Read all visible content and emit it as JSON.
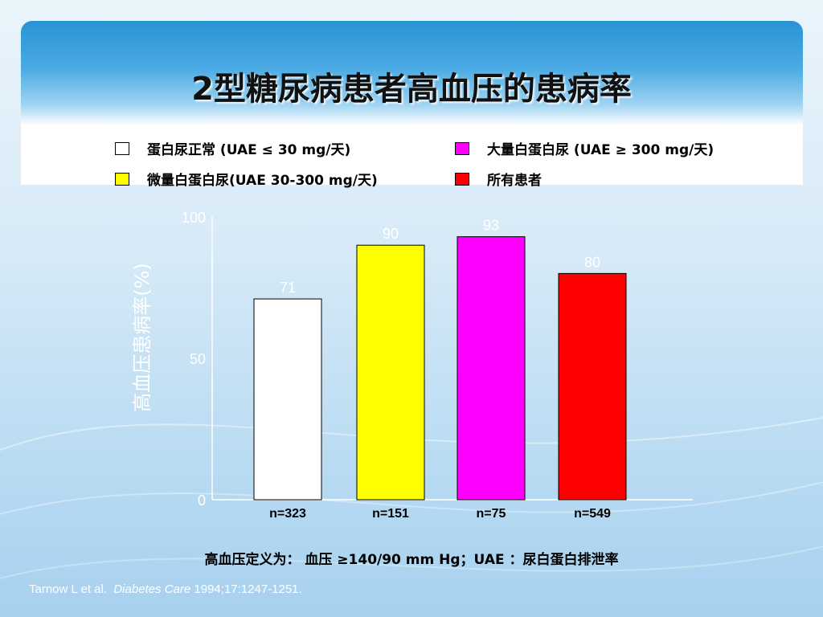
{
  "slide": {
    "title": "2型糖尿病患者高血压的患病率",
    "footnote": "高血压定义为： 血压 ≥140/90 mm Hg；UAE ：尿白蛋白排泄率",
    "citation_authors": "Tarnow L et al.",
    "citation_journal": "Diabetes Care",
    "citation_ref": "1994;17:1247-1251."
  },
  "legend": [
    {
      "label": "蛋白尿正常 (UAE ≤ 30 mg/天)",
      "color": "#ffffff"
    },
    {
      "label": "大量白蛋白尿 (UAE ≥ 300 mg/天)",
      "color": "#ff00ff"
    },
    {
      "label": "微量白蛋白尿(UAE 30-300 mg/天)",
      "color": "#ffff00"
    },
    {
      "label": "所有患者",
      "color": "#ff0000"
    }
  ],
  "chart_data": {
    "type": "bar",
    "ylabel": "高血压患病率(%)",
    "ylim": [
      0,
      100
    ],
    "yticks": [
      "0",
      "50",
      "100"
    ],
    "categories": [
      "n=323",
      "n=151",
      "n=75",
      "n=549"
    ],
    "values": [
      71,
      90,
      93,
      80
    ],
    "value_labels": [
      "71",
      "90",
      "93",
      "80"
    ],
    "colors": [
      "#ffffff",
      "#ffff00",
      "#ff00ff",
      "#ff0000"
    ],
    "grid": false,
    "legend_position": "top"
  }
}
